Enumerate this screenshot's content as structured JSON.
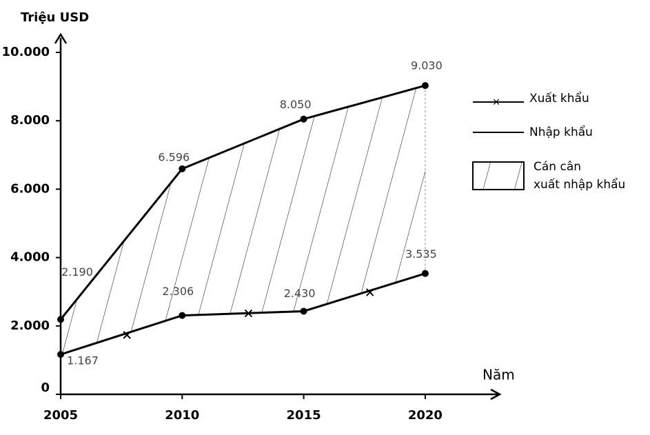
{
  "chart_data": {
    "type": "line",
    "y_axis_label": "Triệu USD",
    "x_axis_label": "Năm",
    "categories": [
      "2005",
      "2010",
      "2015",
      "2020"
    ],
    "series": [
      {
        "name": "Xuất khẩu",
        "color": "#000000",
        "values": [
          1167,
          2306,
          2430,
          3535
        ],
        "value_labels": [
          "1.167",
          "2.306",
          "2.430",
          "3.535"
        ]
      },
      {
        "name": "Nhập khẩu",
        "color": "#000000",
        "values": [
          2190,
          6596,
          8050,
          9030
        ],
        "value_labels": [
          "2.190",
          "6.596",
          "8.050",
          "9.030"
        ]
      }
    ],
    "balance_label": [
      "Cán cân",
      "xuất nhập khẩu"
    ],
    "ylim": [
      0,
      10000
    ],
    "yticks": [
      0,
      {
        "value": 2000,
        "label": "2.000"
      },
      {
        "value": 4000,
        "label": "4.000"
      },
      {
        "value": 6000,
        "label": "6.000"
      },
      {
        "value": 8000,
        "label": "8.000"
      },
      {
        "value": 10000,
        "label": "10.000"
      }
    ],
    "grid": false
  }
}
